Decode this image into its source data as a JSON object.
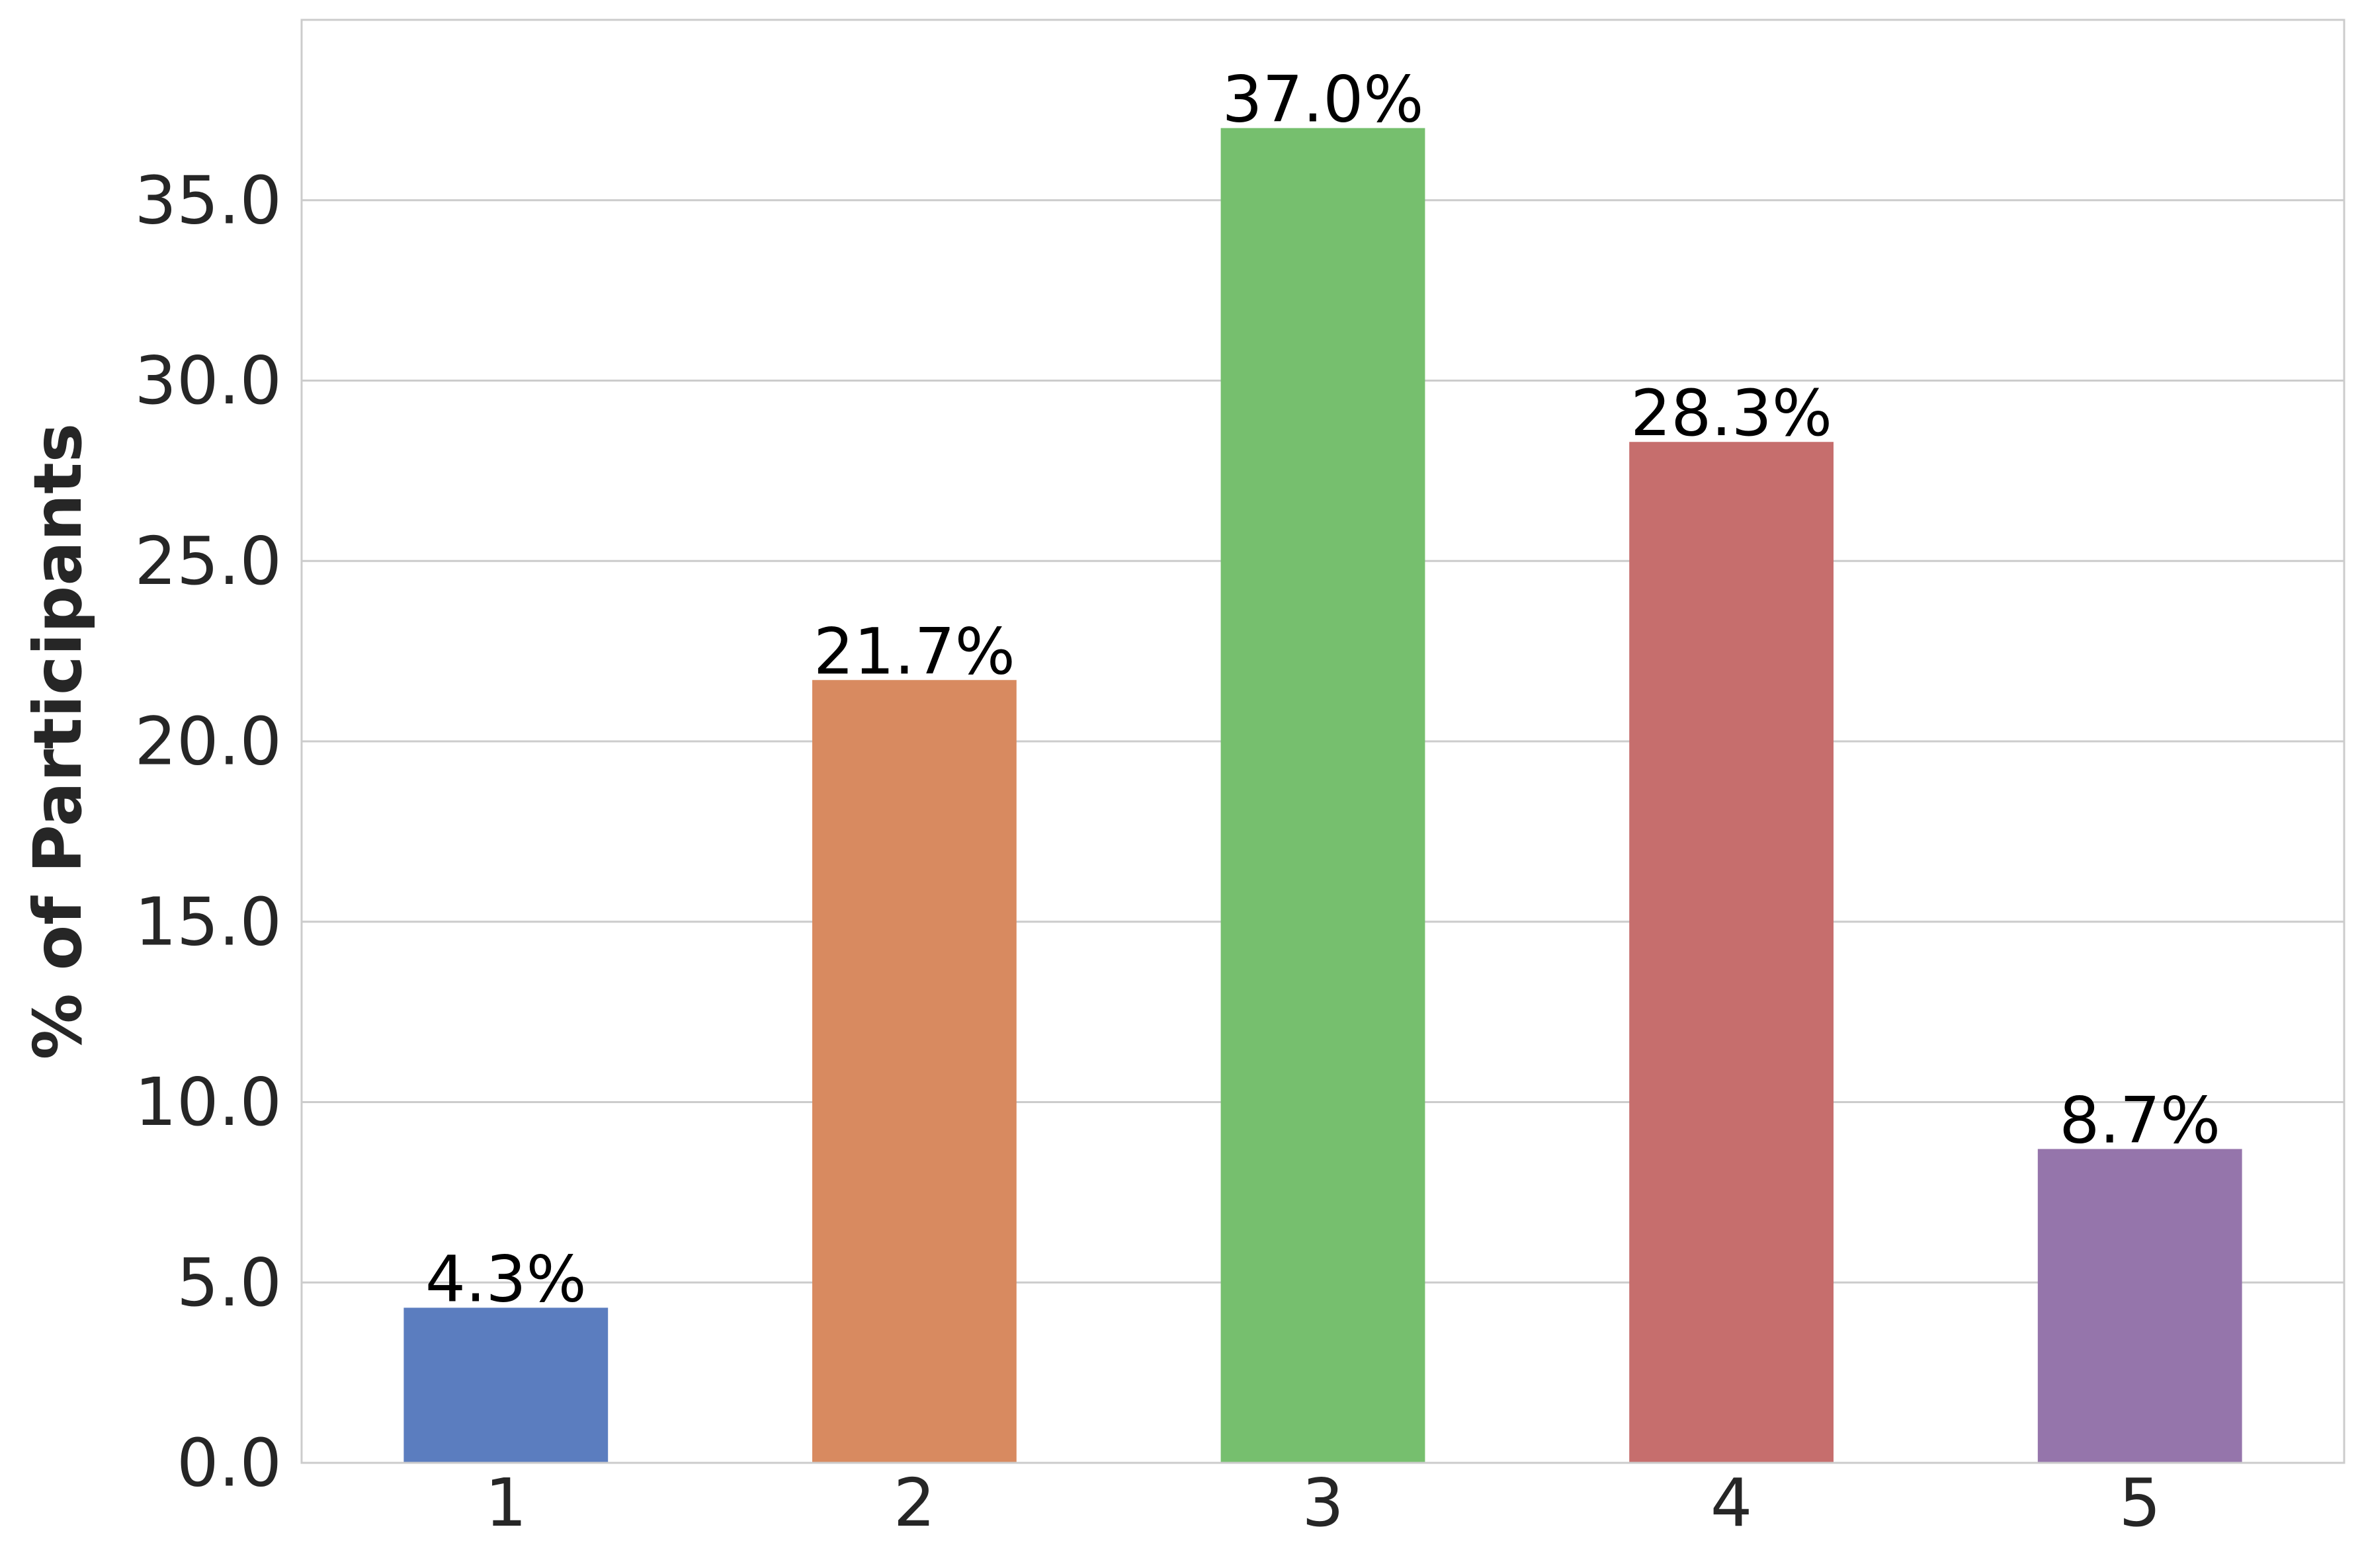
{
  "chart_data": {
    "type": "bar",
    "title": "",
    "xlabel": "",
    "ylabel": "% of Participants",
    "categories": [
      "1",
      "2",
      "3",
      "4",
      "5"
    ],
    "values": [
      4.3,
      21.7,
      37.0,
      28.3,
      8.7
    ],
    "data_labels": [
      "4.3%",
      "21.7%",
      "37.0%",
      "28.3%",
      "8.7%"
    ],
    "bar_colors": [
      "#5b7dbf",
      "#d88a60",
      "#76bf6e",
      "#c66e6d",
      "#9575ab"
    ],
    "ylim": [
      0,
      40
    ],
    "yticks": [
      0,
      5,
      10,
      15,
      20,
      25,
      30,
      35
    ],
    "ytick_labels": [
      "0.0",
      "5.0",
      "10.0",
      "15.0",
      "20.0",
      "25.0",
      "30.0",
      "35.0"
    ],
    "grid": "horizontal",
    "legend": "none",
    "colors": {
      "grid": "#cccccc",
      "spine": "#cccccc",
      "text": "#262626",
      "label_text": "#000000",
      "background": "#ffffff"
    }
  }
}
